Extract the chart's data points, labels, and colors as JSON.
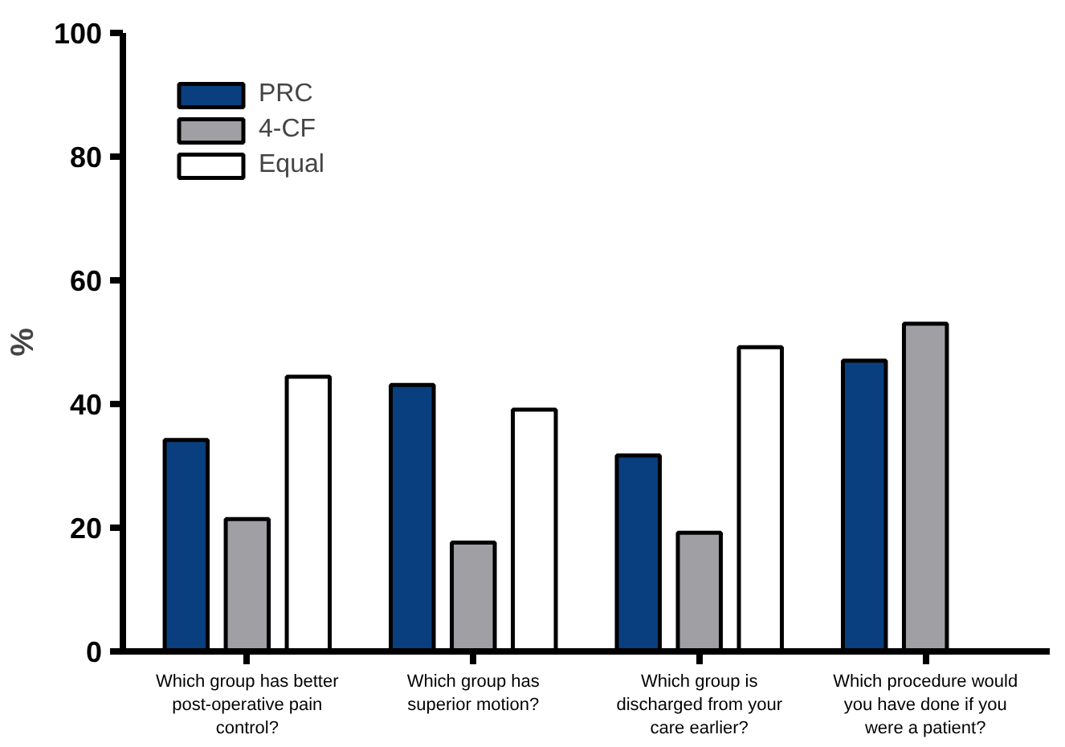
{
  "chart_data": {
    "type": "bar",
    "ylabel": "%",
    "categories": [
      "Which group has better post-operative pain control?",
      "Which group has superior motion?",
      "Which group is discharged from your care earlier?",
      "Which procedure would you have done if you were a patient?"
    ],
    "series": [
      {
        "name": "PRC",
        "color": "#0a3f7f",
        "values": [
          34.2,
          43.1,
          31.7,
          47.0
        ]
      },
      {
        "name": "4-CF",
        "color": "#a0a0a4",
        "values": [
          21.4,
          17.6,
          19.2,
          53.0
        ]
      },
      {
        "name": "Equal",
        "color": "#ffffff",
        "values": [
          44.4,
          39.1,
          49.2,
          null
        ]
      }
    ],
    "ylim": [
      0,
      100
    ],
    "yticks": [
      0,
      20,
      40,
      60,
      80,
      100
    ],
    "grid": false,
    "legend": "top left"
  }
}
